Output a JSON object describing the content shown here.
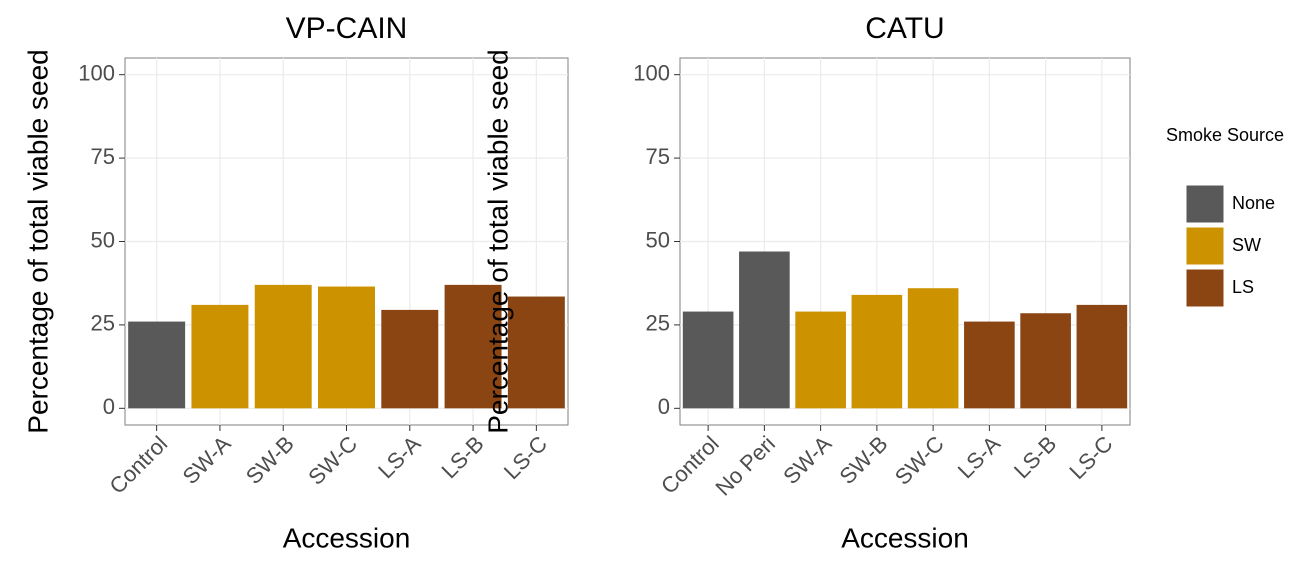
{
  "chart_data": [
    {
      "type": "bar",
      "title": "VP-CAIN",
      "x_label": "Accession",
      "y_label": "Percentage of total viable seed",
      "categories": [
        "Control",
        "SW-A",
        "SW-B",
        "SW-C",
        "LS-A",
        "LS-B",
        "LS-C"
      ],
      "series": [
        {
          "name": "None",
          "color": "#595959",
          "values": [
            26,
            null,
            null,
            null,
            null,
            null,
            null
          ]
        },
        {
          "name": "SW",
          "color": "#cc9200",
          "values": [
            null,
            31,
            37,
            36.5,
            null,
            null,
            null
          ]
        },
        {
          "name": "LS",
          "color": "#8b4513",
          "values": [
            null,
            null,
            null,
            null,
            29.5,
            37,
            33.5
          ]
        }
      ],
      "ylim": [
        -5,
        105
      ],
      "yticks": [
        0,
        25,
        50,
        75,
        100
      ],
      "grid": true
    },
    {
      "type": "bar",
      "title": "CATU",
      "x_label": "Accession",
      "y_label": "Percentage of total viable seed",
      "categories": [
        "Control",
        "No Peri",
        "SW-A",
        "SW-B",
        "SW-C",
        "LS-A",
        "LS-B",
        "LS-C"
      ],
      "series": [
        {
          "name": "None",
          "color": "#595959",
          "values": [
            29,
            47,
            null,
            null,
            null,
            null,
            null,
            null
          ]
        },
        {
          "name": "SW",
          "color": "#cc9200",
          "values": [
            null,
            null,
            29,
            34,
            36,
            null,
            null,
            null
          ]
        },
        {
          "name": "LS",
          "color": "#8b4513",
          "values": [
            null,
            null,
            null,
            null,
            null,
            26,
            28.5,
            31
          ]
        }
      ],
      "ylim": [
        -5,
        105
      ],
      "yticks": [
        0,
        25,
        50,
        75,
        100
      ],
      "grid": true
    }
  ],
  "legend": {
    "title": "Smoke Source"
  }
}
